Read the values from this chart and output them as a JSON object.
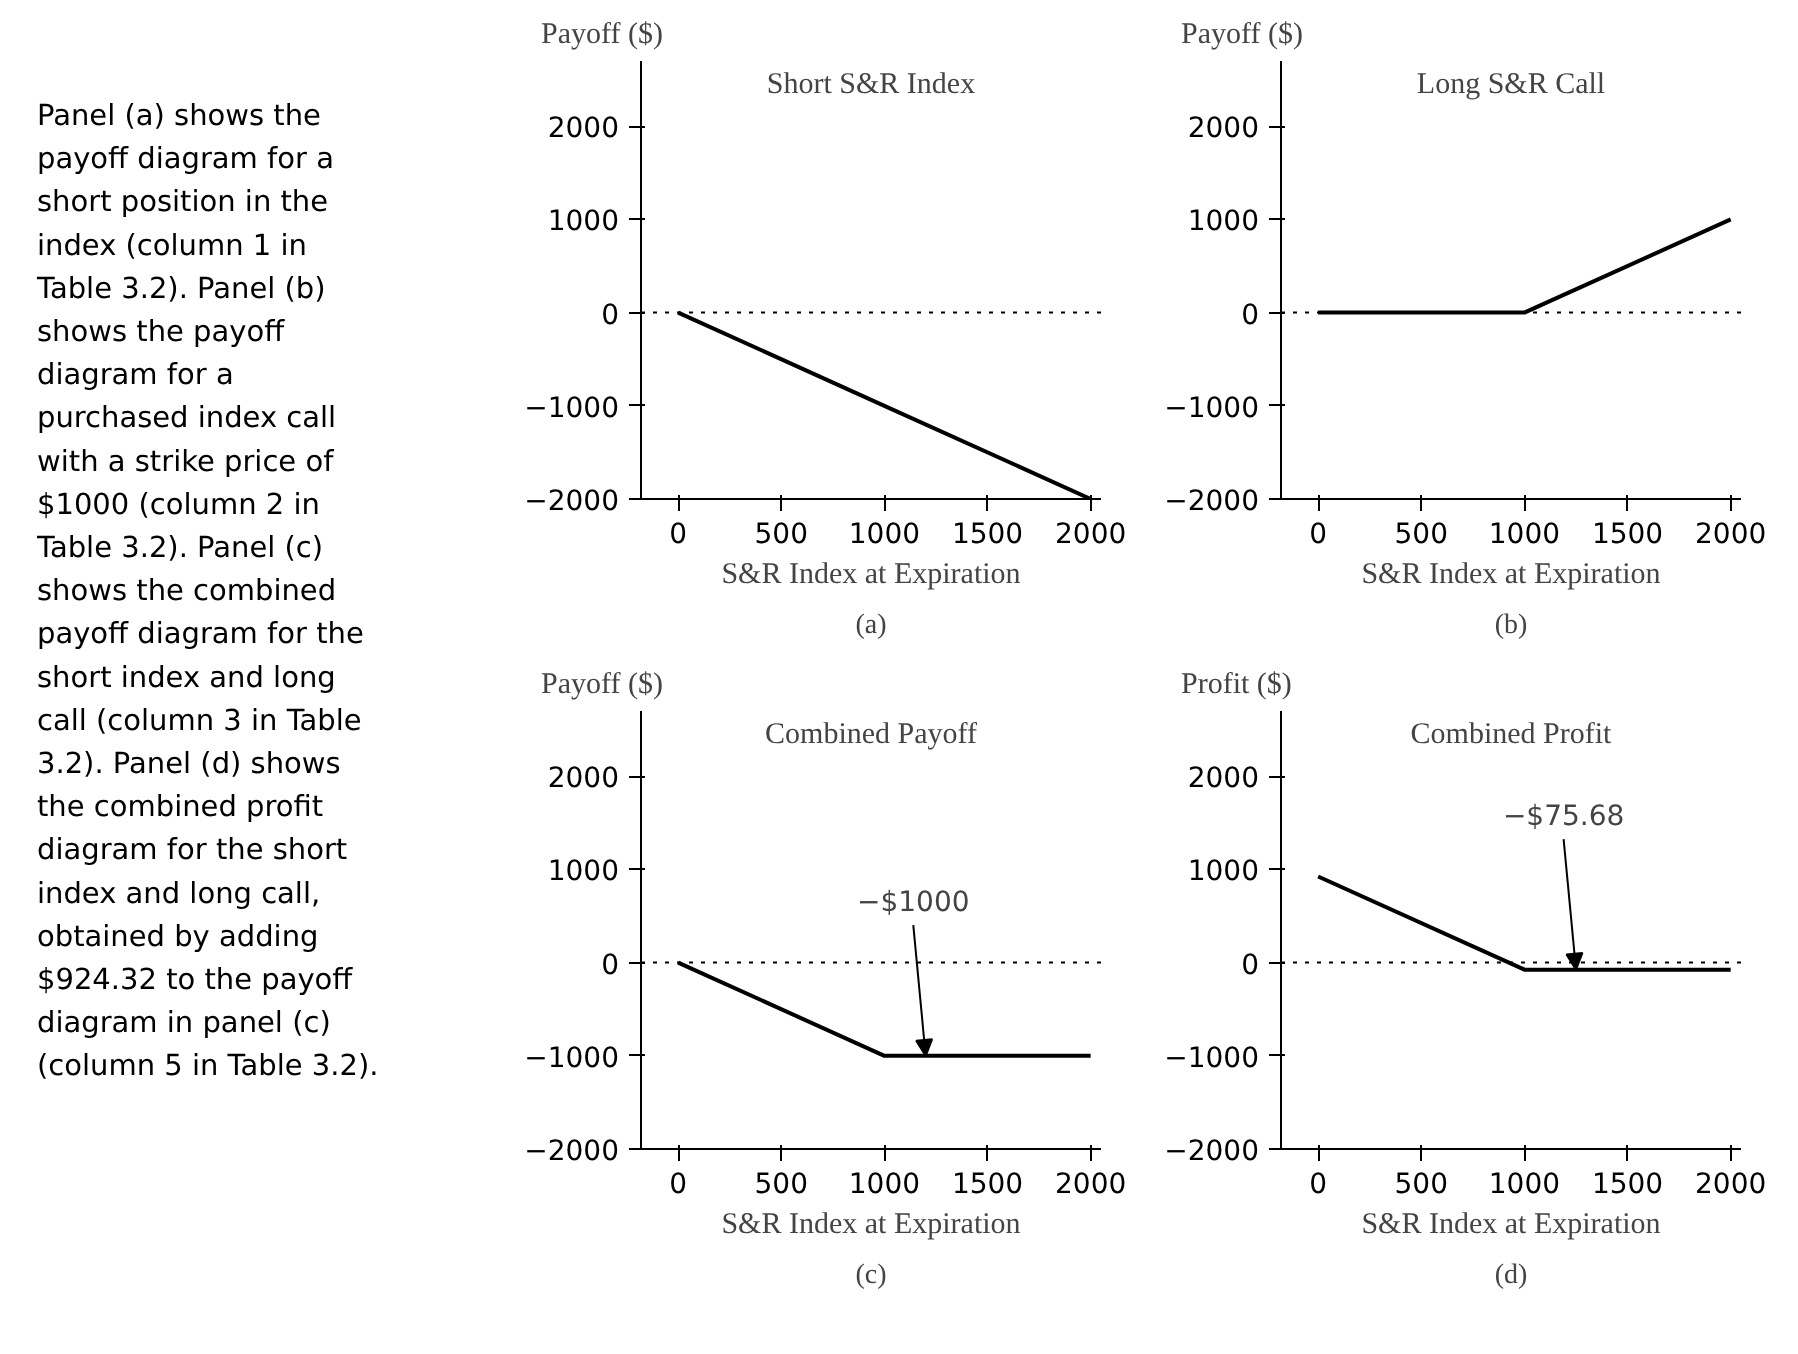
{
  "chart_data": [
    {
      "type": "other",
      "annotations": [
        "Panel (a) shows the",
        "payoff diagram for a",
        "short position in the",
        "index (column 1 in",
        "Table 3.2).  Panel (b)",
        "shows the payoff",
        "diagram for a",
        "purchased index call",
        "with a strike price of",
        "$1000 (column 2 in",
        "Table 3.2).  Panel (c)",
        "shows the combined",
        "payoff diagram for the",
        "short index and long",
        "call (column 3 in Table",
        "3.2).  Panel (d) shows",
        "the combined profit",
        "diagram for the short",
        "index and long call,",
        "obtained by adding",
        "$924.32 to the payoff",
        "diagram in panel (c)",
        "(column 5 in Table 3.2)."
      ]
    },
    {
      "type": "line",
      "title": "Short S&R Index",
      "ylabel": "Payoff ($)",
      "xlabel": "S&R Index at Expiration",
      "subtitle": "(a)",
      "x": [
        0,
        1000,
        2000
      ],
      "series": [
        {
          "color": "#000000",
          "values": [
            0,
            -1000,
            -2000
          ]
        }
      ],
      "xlim": [
        -180,
        2050
      ],
      "xticks": [
        0,
        500,
        1000,
        1500,
        2000
      ],
      "ylim": [
        -2000,
        2700
      ],
      "yticks": [
        -2000,
        -1000,
        0,
        1000,
        2000
      ],
      "ref_lines": [
        {
          "axis": "y",
          "value": 0,
          "line_style": "dotted"
        }
      ],
      "grid": false
    },
    {
      "type": "line",
      "title": "Long S&R Call",
      "ylabel": "Payoff ($)",
      "xlabel": "S&R Index at Expiration",
      "subtitle": "(b)",
      "x": [
        0,
        1000,
        2000
      ],
      "series": [
        {
          "color": "#000000",
          "values": [
            0,
            0,
            1000
          ]
        }
      ],
      "xlim": [
        -180,
        2050
      ],
      "xticks": [
        0,
        500,
        1000,
        1500,
        2000
      ],
      "ylim": [
        -2000,
        2700
      ],
      "yticks": [
        -2000,
        -1000,
        0,
        1000,
        2000
      ],
      "ref_lines": [
        {
          "axis": "y",
          "value": 0,
          "line_style": "dotted"
        }
      ],
      "grid": false
    },
    {
      "type": "line",
      "title": "Combined Payoff",
      "ylabel": "Payoff ($)",
      "xlabel": "S&R Index at Expiration",
      "subtitle": "(c)",
      "x": [
        0,
        1000,
        2000
      ],
      "series": [
        {
          "color": "#000000",
          "values": [
            0,
            -1000,
            -1000
          ]
        }
      ],
      "xlim": [
        -180,
        2050
      ],
      "xticks": [
        0,
        500,
        1000,
        1500,
        2000
      ],
      "ylim": [
        -2000,
        2700
      ],
      "yticks": [
        -2000,
        -1000,
        0,
        1000,
        2000
      ],
      "ref_lines": [
        {
          "axis": "y",
          "value": 0,
          "line_style": "dotted"
        }
      ],
      "annotations": [
        {
          "text": "−$1000",
          "x": 1200,
          "y": -1000
        }
      ],
      "grid": false
    },
    {
      "type": "line",
      "title": "Combined Profit",
      "ylabel": "Profit ($)",
      "xlabel": "S&R Index at Expiration",
      "subtitle": "(d)",
      "x": [
        0,
        1000,
        2000
      ],
      "series": [
        {
          "color": "#000000",
          "values": [
            924.32,
            -75.68,
            -75.68
          ]
        }
      ],
      "xlim": [
        -180,
        2050
      ],
      "xticks": [
        0,
        500,
        1000,
        1500,
        2000
      ],
      "ylim": [
        -2000,
        2700
      ],
      "yticks": [
        -2000,
        -1000,
        0,
        1000,
        2000
      ],
      "ref_lines": [
        {
          "axis": "y",
          "value": 0,
          "line_style": "dotted"
        }
      ],
      "annotations": [
        {
          "text": "−$75.68",
          "x": 1250,
          "y": -75.68
        }
      ],
      "grid": false
    }
  ]
}
